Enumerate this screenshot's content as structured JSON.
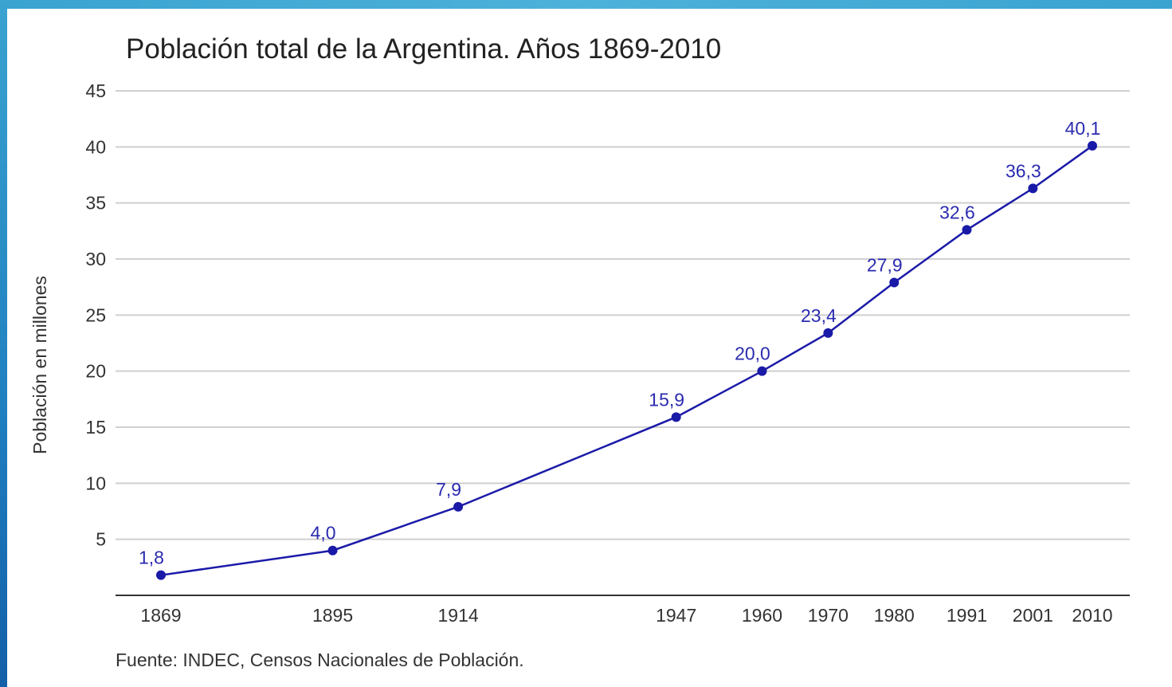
{
  "chart_data": {
    "type": "line",
    "title": "Población total de la Argentina. Años 1869-2010",
    "ylabel": "Población en millones",
    "xlabel": "",
    "x": [
      1869,
      1895,
      1914,
      1947,
      1960,
      1970,
      1980,
      1991,
      2001,
      2010
    ],
    "x_tick_labels": [
      "1869",
      "1895",
      "1914",
      "1947",
      "1960",
      "1970",
      "1980",
      "1991",
      "2001",
      "2010"
    ],
    "values": [
      1.8,
      4.0,
      7.9,
      15.9,
      20.0,
      23.4,
      27.9,
      32.6,
      36.3,
      40.1
    ],
    "data_labels": [
      "1,8",
      "4,0",
      "7,9",
      "15,9",
      "20,0",
      "23,4",
      "27,9",
      "32,6",
      "36,3",
      "40,1"
    ],
    "y_ticks": [
      5,
      10,
      15,
      20,
      25,
      30,
      35,
      40,
      45
    ],
    "y_tick_labels": [
      "5",
      "10",
      "15",
      "20",
      "25",
      "30",
      "35",
      "40",
      "45"
    ],
    "ylim": [
      0,
      45
    ],
    "xlim": [
      1869,
      2010
    ],
    "grid": "horizontal",
    "legend": "none",
    "source": "Fuente: INDEC, Censos Nacionales de Población."
  },
  "colors": {
    "line": "#1a1aa8",
    "marker": "#1a1aa8",
    "data_label": "#2b2bb0",
    "grid": "#cfcfcf",
    "frame": "#3aa3d0"
  }
}
